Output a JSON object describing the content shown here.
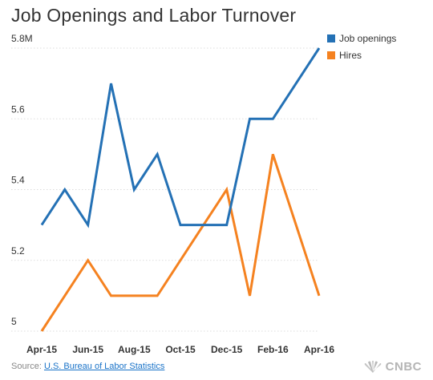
{
  "header": {
    "title": "Job Openings and Labor Turnover"
  },
  "footer": {
    "source_prefix": "Source: ",
    "source_link": "U.S. Bureau of Labor Statistics",
    "logo_text": "CNBC"
  },
  "colors": {
    "job_openings": "#2471b5",
    "hires": "#f58220",
    "grid": "#dddddd"
  },
  "chart_data": {
    "type": "line",
    "title": "Job Openings and Labor Turnover",
    "xlabel": "",
    "ylabel": "",
    "x": [
      "Apr-15",
      "May-15",
      "Jun-15",
      "Jul-15",
      "Aug-15",
      "Sep-15",
      "Oct-15",
      "Nov-15",
      "Dec-15",
      "Jan-16",
      "Feb-16",
      "Mar-16",
      "Apr-16"
    ],
    "x_tick_labels": [
      "Apr-15",
      "Jun-15",
      "Aug-15",
      "Oct-15",
      "Dec-15",
      "Feb-16",
      "Apr-16"
    ],
    "y_tick_labels": [
      "5",
      "5.2",
      "5.4",
      "5.6",
      "5.8M"
    ],
    "y_ticks": [
      5,
      5.2,
      5.4,
      5.6,
      5.8
    ],
    "ylim": [
      5,
      5.8
    ],
    "grid": "horizontal dotted",
    "legend_position": "top-right",
    "series": [
      {
        "name": "Job openings",
        "color": "#2471b5",
        "values": [
          5.3,
          5.4,
          5.3,
          5.7,
          5.4,
          5.5,
          5.3,
          5.3,
          5.3,
          5.6,
          5.6,
          5.7,
          5.8
        ]
      },
      {
        "name": "Hires",
        "color": "#f58220",
        "values": [
          5.0,
          5.1,
          5.2,
          5.1,
          5.1,
          5.1,
          5.2,
          5.3,
          5.4,
          5.1,
          5.5,
          5.3,
          5.1
        ]
      }
    ]
  }
}
